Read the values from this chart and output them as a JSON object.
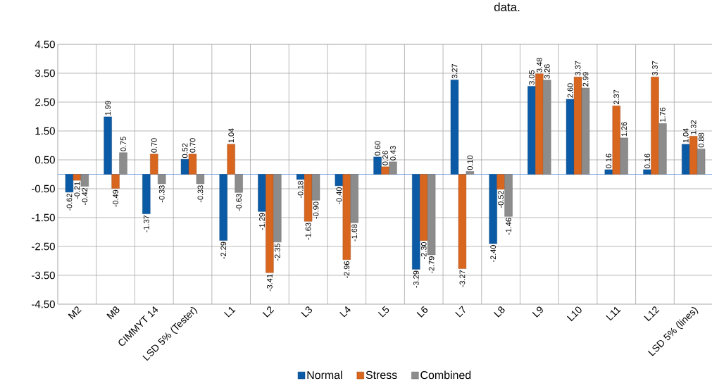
{
  "chart_data": {
    "type": "bar",
    "title": "data.",
    "categories": [
      "M2",
      "M8",
      "CIMMYT 14",
      "LSD 5% (Tester)",
      "L1",
      "L2",
      "L3",
      "L4",
      "L5",
      "L6",
      "L7",
      "L8",
      "L9",
      "L10",
      "L11",
      "L12",
      "LSD 5% (lines)"
    ],
    "series": [
      {
        "name": "Normal",
        "color": "#0b5aa6",
        "values": [
          -0.62,
          1.99,
          -1.37,
          0.52,
          -2.29,
          -1.29,
          -0.18,
          -0.4,
          0.6,
          -3.29,
          3.27,
          -2.4,
          3.05,
          2.6,
          0.16,
          0.16,
          1.04
        ],
        "value_labels": [
          "-0.62",
          "1.99",
          "-1.37",
          "0.52",
          "-2.29",
          "-1.29",
          "-0.18",
          "-0.40",
          "0.60",
          "-3.29",
          "3.27",
          "-2.40",
          "3.05",
          "2.60",
          "0.16",
          "0.16",
          "1.04"
        ]
      },
      {
        "name": "Stress",
        "color": "#d8661f",
        "values": [
          -0.21,
          -0.49,
          0.7,
          0.7,
          1.04,
          -3.41,
          -1.63,
          -2.96,
          0.26,
          -2.3,
          -3.27,
          -0.52,
          3.48,
          3.37,
          2.37,
          3.37,
          1.32
        ],
        "value_labels": [
          "-0.21",
          "-0.49",
          "0.70",
          "0.70",
          "1.04",
          "-3.41",
          "-1.63",
          "-2.96",
          "0.26",
          "-2.30",
          "-3.27",
          "-0.52",
          "3.48",
          "3.37",
          "2.37",
          "3.37",
          "1.32"
        ]
      },
      {
        "name": "Combined",
        "color": "#8c8c8c",
        "values": [
          -0.42,
          0.75,
          -0.33,
          -0.33,
          -0.63,
          -2.35,
          -0.9,
          -1.68,
          0.43,
          -2.79,
          0.1,
          -1.46,
          3.26,
          2.99,
          1.26,
          1.76,
          0.88
        ],
        "value_labels": [
          "-0.42",
          "0.75",
          "-0.33",
          "-0.33",
          "-0.63",
          "-2.35",
          "-0.90",
          "-1.68",
          "0.43",
          "-2.79",
          "0.10",
          "-1.46",
          "3.26",
          "2.99",
          "1.26",
          "1.76",
          "0.88"
        ]
      }
    ],
    "ylim": [
      -4.5,
      4.5
    ],
    "yticks": [
      {
        "value": 4.5,
        "label": "4.50"
      },
      {
        "value": 3.5,
        "label": "3.50"
      },
      {
        "value": 2.5,
        "label": "2.50"
      },
      {
        "value": 1.5,
        "label": "1.50"
      },
      {
        "value": 0.5,
        "label": "0.50"
      },
      {
        "value": -0.5,
        "label": "-0.50"
      },
      {
        "value": -1.5,
        "label": "-1.50"
      },
      {
        "value": -2.5,
        "label": "-2.50"
      },
      {
        "value": -3.5,
        "label": "-3.50"
      },
      {
        "value": -4.5,
        "label": "-4.50"
      }
    ],
    "ref_lines": [
      {
        "axis": "y",
        "value": 0,
        "color": "#5b8fd6"
      }
    ],
    "grid": true,
    "legend": "bottom"
  }
}
